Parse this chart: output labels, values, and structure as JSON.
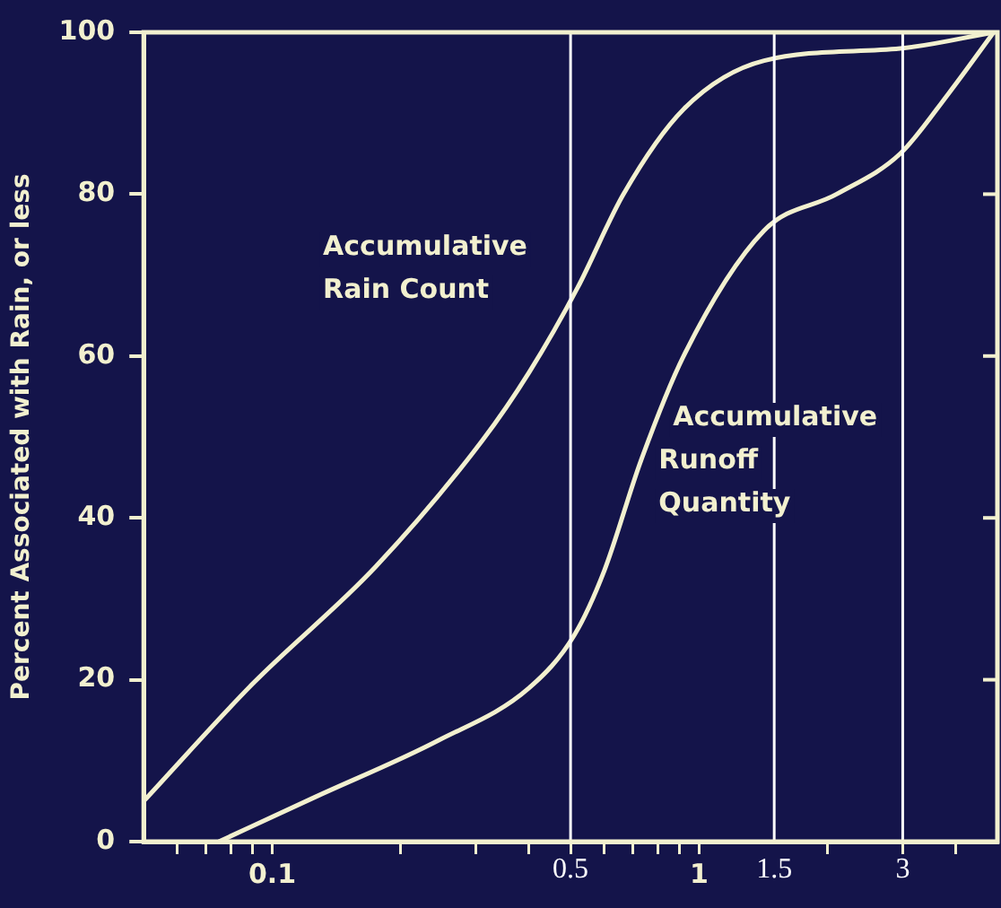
{
  "chart_data": {
    "type": "line",
    "ylabel": "Percent Associated with Rain, or less",
    "log": "x",
    "xlim": [
      0.05,
      5
    ],
    "ylim": [
      0,
      100
    ],
    "xticks": [
      {
        "value": 0.06,
        "label": null
      },
      {
        "value": 0.07,
        "label": null
      },
      {
        "value": 0.08,
        "label": null
      },
      {
        "value": 0.09,
        "label": null
      },
      0.1,
      {
        "value": 0.2,
        "label": null
      },
      {
        "value": 0.3,
        "label": null
      },
      {
        "value": 0.4,
        "label": null
      },
      {
        "value": 0.5,
        "label": null
      },
      {
        "value": 0.6,
        "label": null
      },
      {
        "value": 0.7,
        "label": null
      },
      {
        "value": 0.8,
        "label": null
      },
      {
        "value": 0.9,
        "label": null
      },
      1,
      {
        "value": 2,
        "label": null
      },
      {
        "value": 3,
        "label": null
      },
      {
        "value": 4,
        "label": null
      }
    ],
    "yticks": [
      0,
      20,
      40,
      60,
      80,
      100
    ],
    "grid": false,
    "legend": false,
    "marker": "none",
    "line_style": "solid",
    "series": [
      {
        "name": "Accumulative Rain Count",
        "color": "#f2f0cf",
        "x": [
          0.05,
          0.09,
          0.175,
          0.31,
          0.4,
          0.52,
          0.665,
          0.92,
          1.42,
          2.96,
          4.9
        ],
        "values": [
          5,
          19.5,
          34,
          49.5,
          58,
          68.5,
          80,
          90.5,
          96.5,
          98,
          100
        ]
      },
      {
        "name": "Accumulative Runoff Quantity",
        "color": "#f2f0cf",
        "x": [
          0.075,
          0.126,
          0.245,
          0.4,
          0.51,
          0.6,
          0.73,
          0.92,
          1.42,
          2.1,
          2.96,
          3.85,
          4.9
        ],
        "values": [
          0,
          5.5,
          12.5,
          19,
          25.5,
          33.5,
          47,
          60,
          75.5,
          80,
          85,
          92.5,
          100
        ]
      }
    ],
    "ref_lines": [
      {
        "axis": "x",
        "value": 0.5,
        "label": "0.5",
        "color": "#ffffff"
      },
      {
        "axis": "x",
        "value": 1.5,
        "label": "1.5",
        "color": "#ffffff"
      },
      {
        "axis": "x",
        "value": 3,
        "label": "3",
        "color": "#ffffff"
      }
    ]
  }
}
